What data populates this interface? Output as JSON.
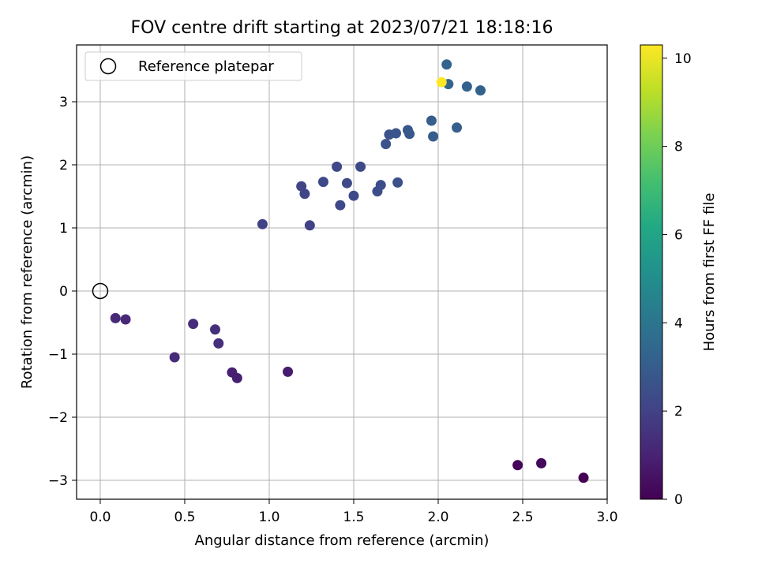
{
  "chart_data": {
    "type": "scatter",
    "title": "FOV centre drift starting at 2023/07/21 18:18:16",
    "xlabel": "Angular distance from reference (arcmin)",
    "ylabel": "Rotation from reference (arcmin)",
    "xlim": [
      -0.14,
      3.0
    ],
    "ylim": [
      -3.3,
      3.9
    ],
    "xticks": [
      0.0,
      0.5,
      1.0,
      1.5,
      2.0,
      2.5,
      3.0
    ],
    "xtick_labels": [
      "0.0",
      "0.5",
      "1.0",
      "1.5",
      "2.0",
      "2.5",
      "3.0"
    ],
    "yticks": [
      -3,
      -2,
      -1,
      0,
      1,
      2,
      3
    ],
    "ytick_labels": [
      "−3",
      "−2",
      "−1",
      "0",
      "1",
      "2",
      "3"
    ],
    "grid": true,
    "legend": {
      "placement": "top-left",
      "entries": [
        "Reference platepar"
      ]
    },
    "reference_point": {
      "x": 0.0,
      "y": 0.0
    },
    "colorbar": {
      "label": "Hours from first FF file",
      "colormap": "viridis",
      "range": [
        0,
        10.3
      ],
      "ticks": [
        0,
        2,
        4,
        6,
        8,
        10
      ],
      "tick_labels": [
        "0",
        "2",
        "4",
        "6",
        "8",
        "10"
      ]
    },
    "series": [
      {
        "points": [
          {
            "x": 2.47,
            "y": -2.76,
            "c": 0.1
          },
          {
            "x": 2.61,
            "y": -2.73,
            "c": 0.2
          },
          {
            "x": 2.86,
            "y": -2.96,
            "c": 0.0
          },
          {
            "x": 0.78,
            "y": -1.29,
            "c": 0.9
          },
          {
            "x": 0.81,
            "y": -1.38,
            "c": 0.9
          },
          {
            "x": 1.11,
            "y": -1.28,
            "c": 0.8
          },
          {
            "x": 0.09,
            "y": -0.43,
            "c": 1.2
          },
          {
            "x": 0.15,
            "y": -0.45,
            "c": 1.2
          },
          {
            "x": 0.44,
            "y": -1.05,
            "c": 1.3
          },
          {
            "x": 0.55,
            "y": -0.52,
            "c": 1.3
          },
          {
            "x": 0.68,
            "y": -0.61,
            "c": 1.4
          },
          {
            "x": 0.7,
            "y": -0.83,
            "c": 1.4
          },
          {
            "x": 0.96,
            "y": 1.06,
            "c": 2.0
          },
          {
            "x": 1.24,
            "y": 1.04,
            "c": 2.0
          },
          {
            "x": 1.19,
            "y": 1.66,
            "c": 2.1
          },
          {
            "x": 1.21,
            "y": 1.54,
            "c": 2.1
          },
          {
            "x": 1.32,
            "y": 1.73,
            "c": 2.2
          },
          {
            "x": 1.4,
            "y": 1.97,
            "c": 2.2
          },
          {
            "x": 1.42,
            "y": 1.36,
            "c": 2.2
          },
          {
            "x": 1.46,
            "y": 1.71,
            "c": 2.3
          },
          {
            "x": 1.5,
            "y": 1.51,
            "c": 2.3
          },
          {
            "x": 1.54,
            "y": 1.97,
            "c": 2.3
          },
          {
            "x": 1.64,
            "y": 1.58,
            "c": 2.4
          },
          {
            "x": 1.66,
            "y": 1.68,
            "c": 2.4
          },
          {
            "x": 1.69,
            "y": 2.33,
            "c": 2.6
          },
          {
            "x": 1.71,
            "y": 2.48,
            "c": 2.6
          },
          {
            "x": 1.75,
            "y": 2.5,
            "c": 2.7
          },
          {
            "x": 1.76,
            "y": 1.72,
            "c": 2.5
          },
          {
            "x": 1.82,
            "y": 2.55,
            "c": 2.8
          },
          {
            "x": 1.83,
            "y": 2.49,
            "c": 2.8
          },
          {
            "x": 1.96,
            "y": 2.7,
            "c": 3.0
          },
          {
            "x": 1.97,
            "y": 2.45,
            "c": 3.0
          },
          {
            "x": 2.05,
            "y": 3.59,
            "c": 3.3
          },
          {
            "x": 2.06,
            "y": 3.28,
            "c": 3.3
          },
          {
            "x": 2.11,
            "y": 2.59,
            "c": 3.1
          },
          {
            "x": 2.17,
            "y": 3.24,
            "c": 3.2
          },
          {
            "x": 2.25,
            "y": 3.18,
            "c": 3.2
          },
          {
            "x": 2.02,
            "y": 3.31,
            "c": 10.3
          }
        ]
      }
    ]
  }
}
